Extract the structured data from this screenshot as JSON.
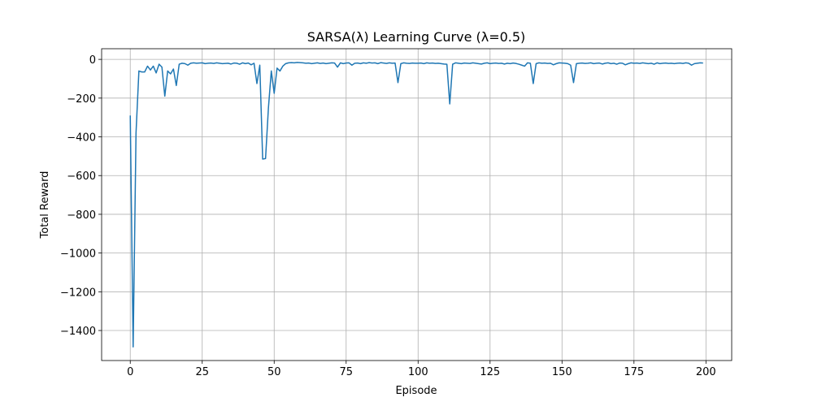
{
  "chart_data": {
    "type": "line",
    "title": "SARSA(λ) Learning Curve (λ=0.5)",
    "xlabel": "Episode",
    "ylabel": "Total Reward",
    "color": "#1f77b4",
    "grid": true,
    "x": [
      0,
      1,
      2,
      3,
      4,
      5,
      6,
      7,
      8,
      9,
      10,
      11,
      12,
      13,
      14,
      15,
      16,
      17,
      18,
      19,
      20,
      21,
      22,
      23,
      24,
      25,
      26,
      27,
      28,
      29,
      30,
      31,
      32,
      33,
      34,
      35,
      36,
      37,
      38,
      39,
      40,
      41,
      42,
      43,
      44,
      45,
      46,
      47,
      48,
      49,
      50,
      51,
      52,
      53,
      54,
      55,
      56,
      57,
      58,
      59,
      60,
      61,
      62,
      63,
      64,
      65,
      66,
      67,
      68,
      69,
      70,
      71,
      72,
      73,
      74,
      75,
      76,
      77,
      78,
      79,
      80,
      81,
      82,
      83,
      84,
      85,
      86,
      87,
      88,
      89,
      90,
      91,
      92,
      93,
      94,
      95,
      96,
      97,
      98,
      99,
      100,
      101,
      102,
      103,
      104,
      105,
      106,
      107,
      108,
      109,
      110,
      111,
      112,
      113,
      114,
      115,
      116,
      117,
      118,
      119,
      120,
      121,
      122,
      123,
      124,
      125,
      126,
      127,
      128,
      129,
      130,
      131,
      132,
      133,
      134,
      135,
      136,
      137,
      138,
      139,
      140,
      141,
      142,
      143,
      144,
      145,
      146,
      147,
      148,
      149,
      150,
      151,
      152,
      153,
      154,
      155,
      156,
      157,
      158,
      159,
      160,
      161,
      162,
      163,
      164,
      165,
      166,
      167,
      168,
      169,
      170,
      171,
      172,
      173,
      174,
      175,
      176,
      177,
      178,
      179,
      180,
      181,
      182,
      183,
      184,
      185,
      186,
      187,
      188,
      189,
      190,
      191,
      192,
      193,
      194,
      195,
      196,
      197,
      198,
      199
    ],
    "values": [
      -290,
      -1485,
      -380,
      -60,
      -65,
      -65,
      -35,
      -55,
      -35,
      -70,
      -25,
      -40,
      -190,
      -60,
      -75,
      -50,
      -135,
      -25,
      -20,
      -22,
      -30,
      -20,
      -18,
      -20,
      -19,
      -18,
      -22,
      -20,
      -19,
      -21,
      -18,
      -20,
      -22,
      -21,
      -20,
      -24,
      -19,
      -20,
      -25,
      -18,
      -22,
      -19,
      -28,
      -20,
      -125,
      -30,
      -515,
      -512,
      -250,
      -60,
      -175,
      -45,
      -60,
      -35,
      -22,
      -18,
      -17,
      -18,
      -16,
      -17,
      -18,
      -20,
      -19,
      -22,
      -20,
      -18,
      -21,
      -19,
      -22,
      -20,
      -18,
      -19,
      -40,
      -18,
      -22,
      -19,
      -18,
      -30,
      -20,
      -19,
      -22,
      -18,
      -20,
      -17,
      -19,
      -18,
      -22,
      -17,
      -19,
      -21,
      -18,
      -20,
      -19,
      -120,
      -22,
      -18,
      -20,
      -21,
      -19,
      -20,
      -20,
      -19,
      -22,
      -18,
      -20,
      -19,
      -21,
      -20,
      -22,
      -24,
      -25,
      -230,
      -25,
      -18,
      -20,
      -22,
      -19,
      -20,
      -21,
      -18,
      -20,
      -22,
      -24,
      -20,
      -18,
      -22,
      -20,
      -19,
      -21,
      -20,
      -24,
      -20,
      -22,
      -19,
      -21,
      -25,
      -30,
      -35,
      -18,
      -20,
      -125,
      -22,
      -18,
      -20,
      -19,
      -21,
      -20,
      -28,
      -22,
      -18,
      -19,
      -20,
      -22,
      -30,
      -120,
      -22,
      -20,
      -19,
      -21,
      -20,
      -18,
      -22,
      -20,
      -19,
      -24,
      -20,
      -18,
      -22,
      -20,
      -25,
      -19,
      -20,
      -28,
      -22,
      -18,
      -20,
      -19,
      -21,
      -18,
      -20,
      -22,
      -20,
      -25,
      -18,
      -22,
      -20,
      -19,
      -21,
      -20,
      -22,
      -20,
      -19,
      -21,
      -18,
      -20,
      -30,
      -22,
      -20,
      -18,
      -19
    ],
    "xlim": [
      -9.95,
      208.95
    ],
    "xticks": [
      0,
      25,
      50,
      75,
      100,
      125,
      150,
      175,
      200
    ],
    "ylim": [
      -1555,
      55
    ],
    "yticks": [
      {
        "value": -1400,
        "label": "−1400"
      },
      {
        "value": -1200,
        "label": "−1200"
      },
      {
        "value": -1000,
        "label": "−1000"
      },
      {
        "value": -800,
        "label": "−800"
      },
      {
        "value": -600,
        "label": "−600"
      },
      {
        "value": -400,
        "label": "−400"
      },
      {
        "value": -200,
        "label": "−200"
      },
      0
    ]
  }
}
